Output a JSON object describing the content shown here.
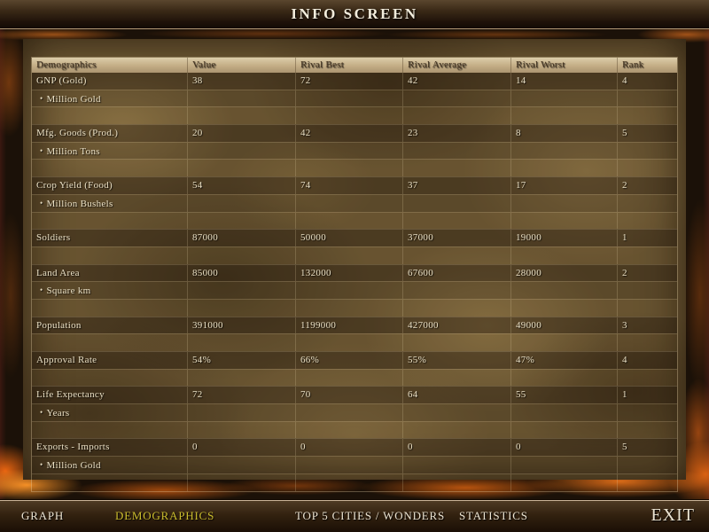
{
  "title_bar": {
    "title": "INFO SCREEN"
  },
  "table": {
    "columns": [
      "Demographics",
      "Value",
      "Rival Best",
      "Rival Average",
      "Rival Worst",
      "Rank"
    ],
    "value_keys": [
      "value",
      "rival_best",
      "rival_average",
      "rival_worst",
      "rank"
    ],
    "unit_bullet": "•",
    "rows": [
      {
        "label": "GNP (Gold)",
        "unit": "Million Gold",
        "value": "38",
        "rival_best": "72",
        "rival_average": "42",
        "rival_worst": "14",
        "rank": "4"
      },
      {
        "label": "Mfg. Goods (Prod.)",
        "unit": "Million Tons",
        "value": "20",
        "rival_best": "42",
        "rival_average": "23",
        "rival_worst": "8",
        "rank": "5"
      },
      {
        "label": "Crop Yield (Food)",
        "unit": "Million Bushels",
        "value": "54",
        "rival_best": "74",
        "rival_average": "37",
        "rival_worst": "17",
        "rank": "2"
      },
      {
        "label": "Soldiers",
        "unit": "",
        "value": "87000",
        "rival_best": "50000",
        "rival_average": "37000",
        "rival_worst": "19000",
        "rank": "1"
      },
      {
        "label": "Land Area",
        "unit": "Square km",
        "value": "85000",
        "rival_best": "132000",
        "rival_average": "67600",
        "rival_worst": "28000",
        "rank": "2"
      },
      {
        "label": "Population",
        "unit": "",
        "value": "391000",
        "rival_best": "1199000",
        "rival_average": "427000",
        "rival_worst": "49000",
        "rank": "3"
      },
      {
        "label": "Approval Rate",
        "unit": "",
        "value": "54%",
        "rival_best": "66%",
        "rival_average": "55%",
        "rival_worst": "47%",
        "rank": "4"
      },
      {
        "label": "Life Expectancy",
        "unit": "Years",
        "value": "72",
        "rival_best": "70",
        "rival_average": "64",
        "rival_worst": "55",
        "rank": "1"
      },
      {
        "label": "Exports - Imports",
        "unit": "Million Gold",
        "value": "0",
        "rival_best": "0",
        "rival_average": "0",
        "rival_worst": "0",
        "rank": "5"
      }
    ]
  },
  "nav": {
    "items": [
      {
        "label": "GRAPH",
        "active": false
      },
      {
        "label": "DEMOGRAPHICS",
        "active": true
      },
      {
        "label": "TOP 5 CITIES / WONDERS",
        "active": false
      },
      {
        "label": "STATISTICS",
        "active": false
      }
    ],
    "exit_label": "EXIT",
    "active_color": "#cbbd2e"
  },
  "colors": {
    "title_text": "#f2ecdc",
    "table_text": "#e9dfc4",
    "header_text": "#443320",
    "flame_orange": "#e0711a"
  }
}
